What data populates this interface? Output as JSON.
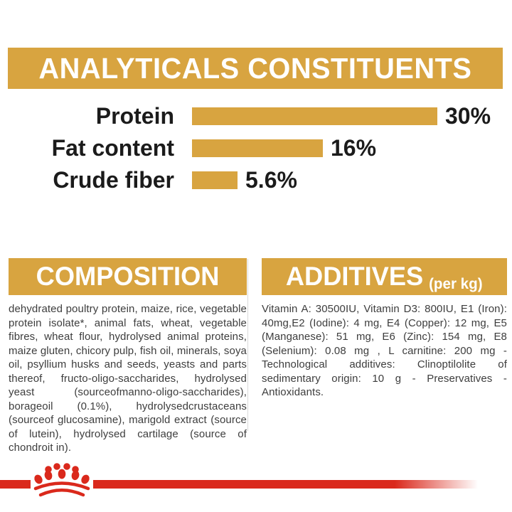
{
  "header": {
    "title": "ANALYTICALS CONSTITUENTS"
  },
  "chart_data": {
    "type": "bar",
    "orientation": "horizontal",
    "title": "ANALYTICALS CONSTITUENTS",
    "categories": [
      "Protein",
      "Fat content",
      "Crude fiber"
    ],
    "values": [
      30,
      16,
      5.6
    ],
    "value_labels": [
      "30%",
      "16%",
      "5.6%"
    ],
    "unit": "%",
    "xlim": [
      0,
      30
    ],
    "grid": false,
    "legend": false,
    "bar_color": "#D8A440"
  },
  "composition": {
    "title": "COMPOSITION",
    "body": "dehydrated poultry protein, maize, rice, vegetable protein isolate*, animal fats, wheat, vegetable fibres, wheat flour, hydrolysed animal proteins, maize gluten, chicory pulp, fish oil, minerals, soya oil, psyllium husks and seeds, yeasts and parts thereof, fructo-oligo-saccharides, hydrolysed yeast (sourceofmanno-oligo-saccharides), borageoil (0.1%), hydrolysedcrustaceans (sourceof glucosamine), marigold extract (source of lutein), hydrolysed cartilage (source of chondroit in)."
  },
  "additives": {
    "title": "ADDITIVES",
    "subtitle": "(per kg)",
    "body": "Vitamin A: 30500IU, Vitamin D3: 800IU, E1 (Iron): 40mg,E2 (Iodine): 4 mg, E4 (Copper): 12 mg, E5 (Manganese): 51 mg, E6 (Zinc): 154 mg, E8 (Selenium): 0.08 mg , L carnitine: 200 mg - Technological additives: Clinoptilolite of sedimentary origin: 10 g - Preservatives - Antioxidants."
  },
  "colors": {
    "gold": "#D8A440",
    "red": "#DA291C",
    "heading_text": "#FFFFFF",
    "chart_text": "#1B1B1B",
    "body_text": "#3D3D3D"
  },
  "footer": {
    "brand_logo": "royal-canin-crown"
  }
}
